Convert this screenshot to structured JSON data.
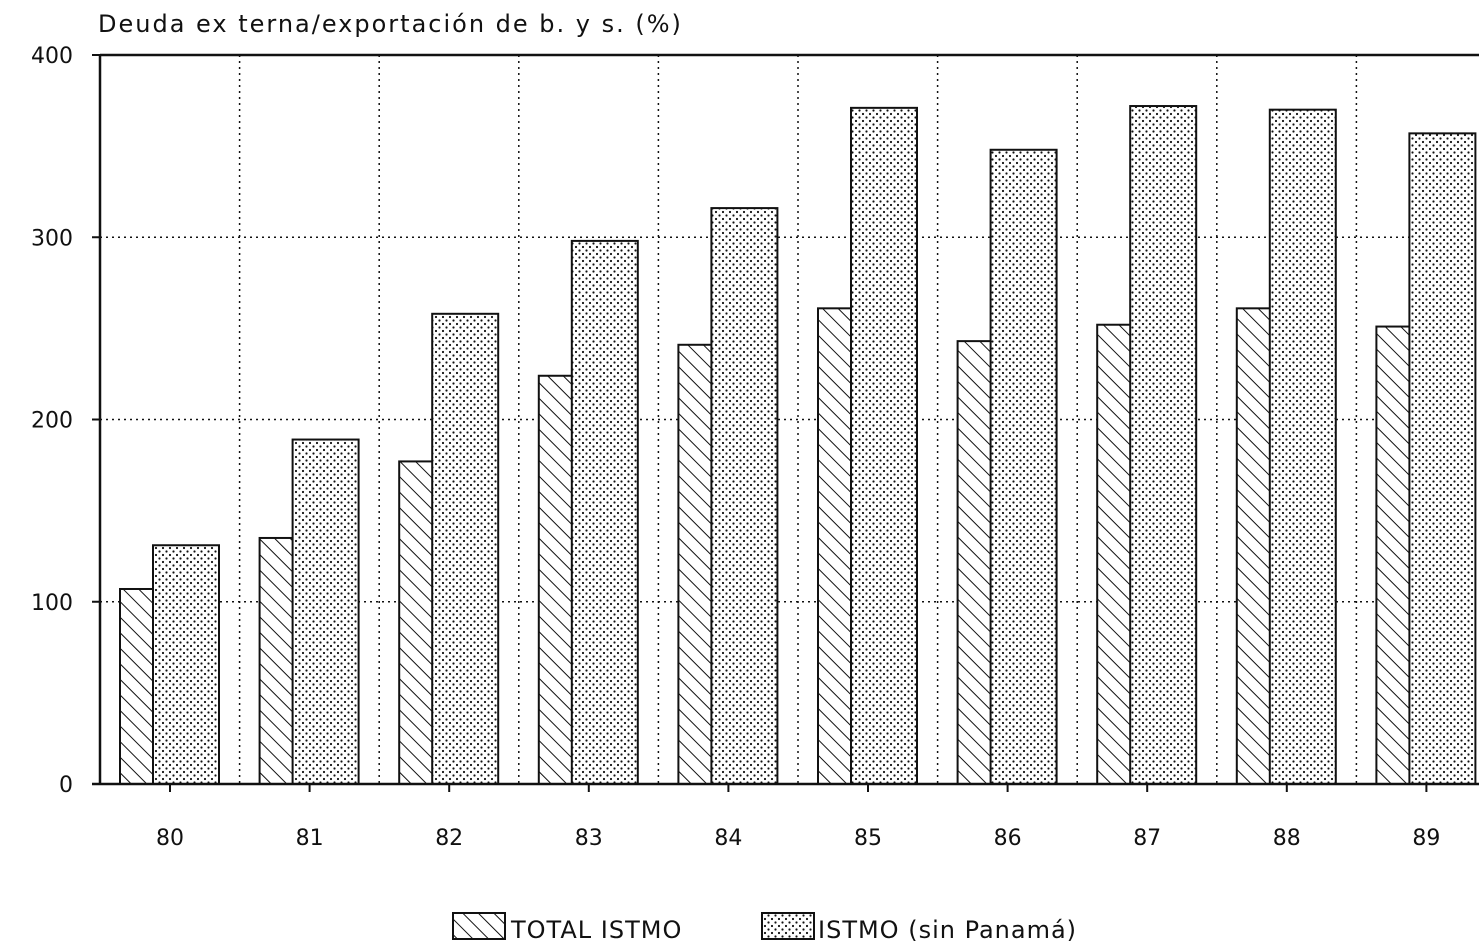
{
  "chart_data": {
    "type": "bar",
    "title": "Deuda ex terna/exportación de b. y s. (%)",
    "xlabel": "",
    "ylabel": "",
    "categories": [
      "80",
      "81",
      "82",
      "83",
      "84",
      "85",
      "86",
      "87",
      "88",
      "89"
    ],
    "series": [
      {
        "name": "TOTAL ISTMO",
        "pattern": "diagonal-hatch",
        "values": [
          107,
          135,
          177,
          224,
          241,
          261,
          243,
          252,
          261,
          251
        ]
      },
      {
        "name": "ISTMO (sin Panamá)",
        "pattern": "dots",
        "values": [
          131,
          189,
          258,
          298,
          316,
          371,
          348,
          372,
          370,
          357
        ]
      }
    ],
    "ylim": [
      0,
      400
    ],
    "yticks": [
      "0",
      "100",
      "200",
      "300",
      "400"
    ],
    "grid": true,
    "legend_position": "bottom-center",
    "colors": {
      "ink": "#111111",
      "background": "#ffffff"
    }
  }
}
